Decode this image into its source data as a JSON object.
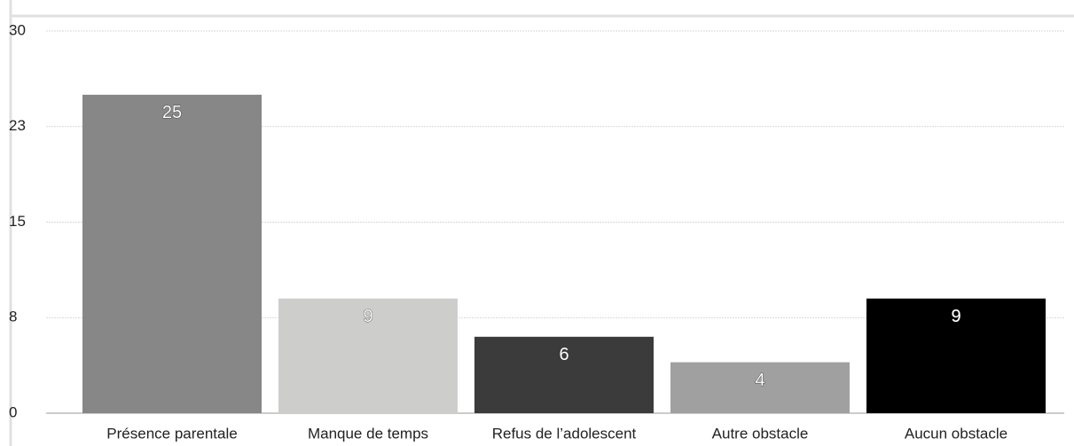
{
  "chart_data": {
    "type": "bar",
    "categories": [
      "Présence parentale",
      "Manque de temps",
      "Refus de l’adolescent",
      "Autre obstacle",
      "Aucun obstacle"
    ],
    "values": [
      25,
      9,
      6,
      4,
      9
    ],
    "colors": [
      "#878787",
      "#cdcdcb",
      "#3b3b3b",
      "#a0a0a0",
      "#000000"
    ],
    "ylim": [
      0,
      30
    ],
    "yticks": [
      0,
      {
        "value": 7.5,
        "label": "8"
      },
      15,
      {
        "value": 22.5,
        "label": "23"
      },
      30
    ],
    "grid": true
  }
}
